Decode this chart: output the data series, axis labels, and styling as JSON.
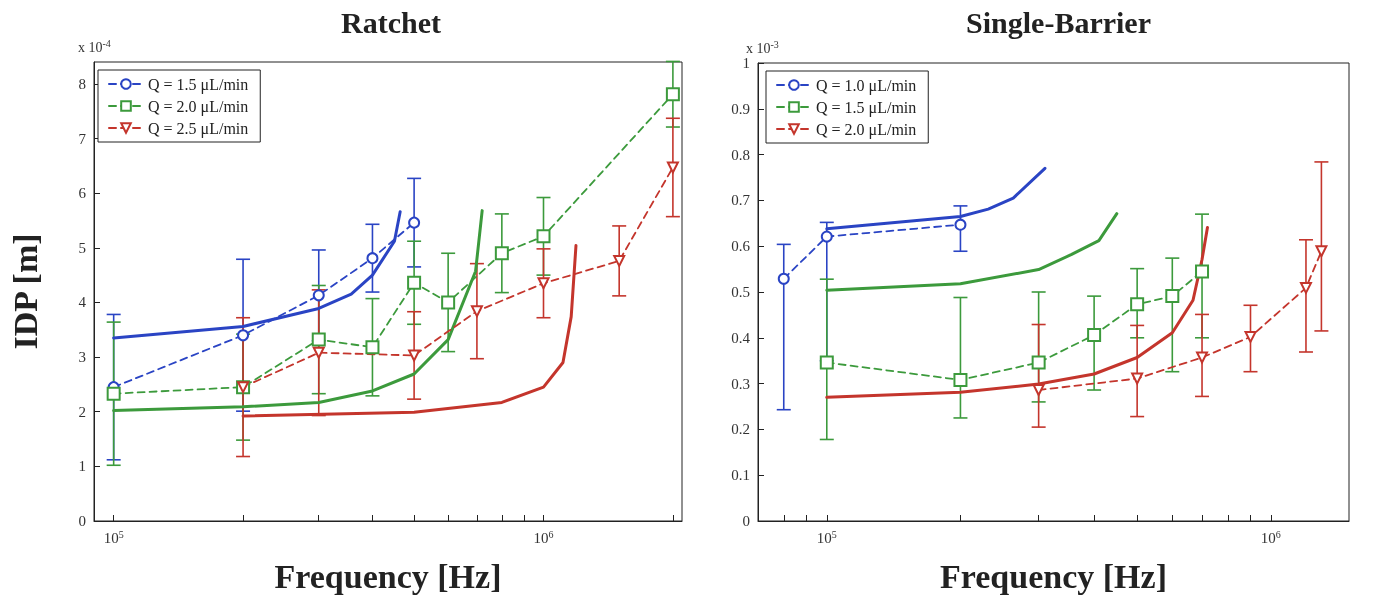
{
  "chart_data": [
    {
      "type": "line",
      "title": "Ratchet",
      "xlabel": "Frequency [Hz]",
      "ylabel": "IDP [m]",
      "annotations": [
        "x 10$^{-4}$"
      ],
      "log": "x",
      "xlim": [
        90000,
        2100000
      ],
      "xticks": [
        {
          "value": 100000,
          "label": "10$^{5}$"
        },
        {
          "value": 200000,
          "label": null
        },
        {
          "value": 300000,
          "label": null
        },
        {
          "value": 400000,
          "label": null
        },
        {
          "value": 500000,
          "label": null
        },
        {
          "value": 600000,
          "label": null
        },
        {
          "value": 700000,
          "label": null
        },
        {
          "value": 800000,
          "label": null
        },
        {
          "value": 900000,
          "label": null
        },
        {
          "value": 1000000,
          "label": "10$^{6}$"
        },
        {
          "value": 2000000,
          "label": null
        }
      ],
      "ylim": [
        0,
        8.4
      ],
      "yticks": [
        0,
        1,
        2,
        3,
        4,
        5,
        6,
        7,
        8
      ],
      "grid": false,
      "legend": "top left",
      "series": [
        {
          "name": "Q = 1.5 μL/min",
          "color": "#2a44c4",
          "marker": "circle",
          "line_style": "dashed",
          "x": [
            100000,
            200000,
            300000,
            400000,
            500000
          ],
          "values": [
            2.45,
            3.4,
            4.13,
            4.81,
            5.46
          ],
          "errors": [
            1.33,
            1.39,
            0.83,
            0.62,
            0.81
          ]
        },
        {
          "name": "Q = 2.0 μL/min",
          "color": "#3c9a3c",
          "marker": "square",
          "line_style": "dashed",
          "x": [
            100000,
            200000,
            300000,
            400000,
            500000,
            600000,
            800000,
            1000000,
            2000000
          ],
          "values": [
            2.33,
            2.45,
            3.32,
            3.18,
            4.36,
            4.0,
            4.9,
            5.21,
            7.81
          ],
          "errors": [
            1.31,
            0.97,
            0.99,
            0.89,
            0.76,
            0.9,
            0.72,
            0.71,
            0.6
          ]
        },
        {
          "name": "Q = 2.5 μL/min",
          "color": "#c4352c",
          "marker": "triangle",
          "line_style": "dashed",
          "x": [
            200000,
            300000,
            500000,
            700000,
            1000000,
            1500000,
            2000000
          ],
          "values": [
            2.45,
            3.08,
            3.03,
            3.84,
            4.35,
            4.76,
            6.47
          ],
          "errors": [
            1.27,
            1.15,
            0.8,
            0.87,
            0.63,
            0.64,
            0.9
          ]
        },
        {
          "color": "#2a44c4",
          "marker": "none",
          "line_style": "solid",
          "x": [
            100000,
            200000,
            300000,
            357000,
            400000,
            450000,
            464000
          ],
          "values": [
            3.35,
            3.56,
            3.89,
            4.15,
            4.5,
            5.12,
            5.66
          ]
        },
        {
          "color": "#3c9a3c",
          "marker": "none",
          "line_style": "solid",
          "x": [
            100000,
            200000,
            300000,
            400000,
            500000,
            600000,
            695000,
            720000
          ],
          "values": [
            2.02,
            2.09,
            2.17,
            2.38,
            2.69,
            3.32,
            4.57,
            5.68
          ]
        },
        {
          "color": "#c4352c",
          "marker": "none",
          "line_style": "solid",
          "x": [
            200000,
            500000,
            800000,
            1000000,
            1110000,
            1160000,
            1190000
          ],
          "values": [
            1.92,
            1.99,
            2.17,
            2.45,
            2.9,
            3.74,
            5.04
          ]
        }
      ]
    },
    {
      "type": "line",
      "title": "Single-Barrier",
      "xlabel": "Frequency [Hz]",
      "annotations": [
        "x 10$^{-3}$"
      ],
      "log": "x",
      "xlim": [
        70000,
        1500000
      ],
      "xticks": [
        {
          "value": 80000,
          "label": null
        },
        {
          "value": 90000,
          "label": null
        },
        {
          "value": 100000,
          "label": "10$^{5}$"
        },
        {
          "value": 200000,
          "label": null
        },
        {
          "value": 300000,
          "label": null
        },
        {
          "value": 400000,
          "label": null
        },
        {
          "value": 500000,
          "label": null
        },
        {
          "value": 600000,
          "label": null
        },
        {
          "value": 700000,
          "label": null
        },
        {
          "value": 800000,
          "label": null
        },
        {
          "value": 900000,
          "label": null
        },
        {
          "value": 1000000,
          "label": "10$^{6}$"
        }
      ],
      "ylim": [
        0,
        1
      ],
      "yticks": [
        0,
        0.1,
        0.2,
        0.3,
        0.4,
        0.5,
        0.6,
        0.7,
        0.8,
        0.9,
        1
      ],
      "grid": false,
      "legend": "top left",
      "series": [
        {
          "name": "Q = 1.0 μL/min",
          "color": "#2a44c4",
          "marker": "circle",
          "line_style": "dashed",
          "x": [
            80000,
            100000,
            200000
          ],
          "values": [
            0.529,
            0.621,
            0.647
          ],
          "errors": [
            [
              0.243,
              0.604
            ],
            [
              0.35,
              0.652
            ],
            [
              0.589,
              0.688
            ]
          ]
        },
        {
          "name": "Q = 1.5 μL/min",
          "color": "#3c9a3c",
          "marker": "square",
          "line_style": "dashed",
          "x": [
            100000,
            200000,
            300000,
            400000,
            500000,
            600000,
            700000
          ],
          "values": [
            0.346,
            0.308,
            0.346,
            0.406,
            0.473,
            0.491,
            0.545
          ],
          "errors": [
            [
              0.178,
              0.528
            ],
            [
              0.225,
              0.488
            ],
            [
              0.26,
              0.5
            ],
            [
              0.286,
              0.491
            ],
            [
              0.4,
              0.551
            ],
            [
              0.326,
              0.574
            ],
            [
              0.4,
              0.67
            ]
          ]
        },
        {
          "name": "Q = 2.0 μL/min",
          "color": "#c4352c",
          "marker": "triangle",
          "line_style": "dashed",
          "x": [
            300000,
            500000,
            700000,
            900000,
            1200000,
            1300000
          ],
          "values": [
            0.286,
            0.311,
            0.357,
            0.402,
            0.509,
            0.589
          ],
          "errors": [
            [
              0.205,
              0.429
            ],
            [
              0.228,
              0.427
            ],
            [
              0.272,
              0.451
            ],
            [
              0.326,
              0.471
            ],
            [
              0.369,
              0.614
            ],
            [
              0.415,
              0.784
            ]
          ]
        },
        {
          "color": "#2a44c4",
          "marker": "none",
          "line_style": "solid",
          "x": [
            100000,
            200000,
            231000,
            263000,
            310000
          ],
          "values": [
            0.638,
            0.665,
            0.681,
            0.705,
            0.77
          ]
        },
        {
          "color": "#3c9a3c",
          "marker": "none",
          "line_style": "solid",
          "x": [
            100000,
            200000,
            300000,
            356000,
            410000,
            450000
          ],
          "values": [
            0.504,
            0.518,
            0.549,
            0.582,
            0.612,
            0.671
          ]
        },
        {
          "color": "#c4352c",
          "marker": "none",
          "line_style": "solid",
          "x": [
            100000,
            200000,
            300000,
            400000,
            500000,
            600000,
            668000,
            700000,
            720000
          ],
          "values": [
            0.27,
            0.281,
            0.299,
            0.321,
            0.357,
            0.411,
            0.482,
            0.571,
            0.641
          ]
        }
      ]
    }
  ]
}
